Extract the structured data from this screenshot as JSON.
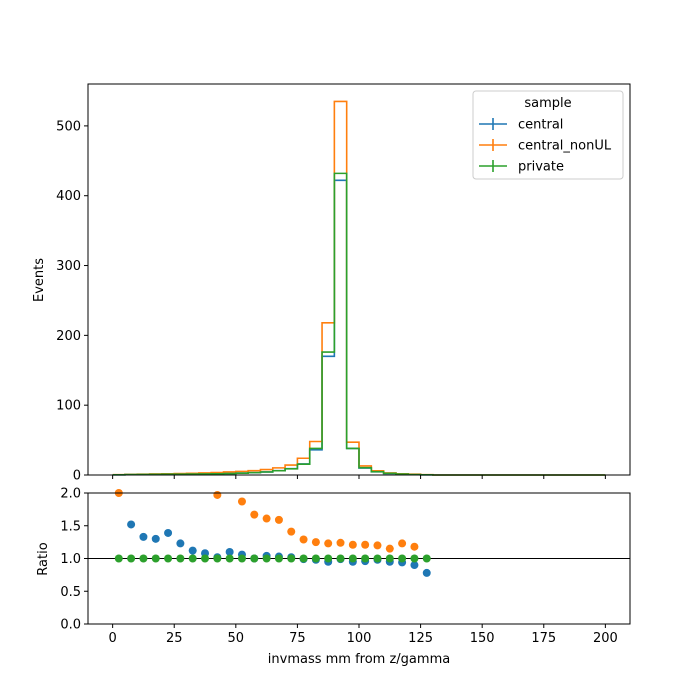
{
  "chart_data": [
    {
      "type": "line",
      "style": "step-histogram",
      "title": "",
      "xlabel": "",
      "ylabel": "Events",
      "xlim": [
        -10,
        210
      ],
      "ylim": [
        0,
        560
      ],
      "xticks": [
        0,
        25,
        50,
        75,
        100,
        125,
        150,
        175,
        200
      ],
      "xticks_labeled": false,
      "yticks": [
        0,
        100,
        200,
        300,
        400,
        500
      ],
      "bin_edges": [
        0,
        5,
        10,
        15,
        20,
        25,
        30,
        35,
        40,
        45,
        50,
        55,
        60,
        65,
        70,
        75,
        80,
        85,
        90,
        95,
        100,
        105,
        110,
        115,
        120,
        125,
        130,
        135,
        140,
        145,
        150,
        155,
        160,
        165,
        170,
        175,
        180,
        185,
        190,
        195,
        200
      ],
      "legend": {
        "title": "sample",
        "position": "top-right"
      },
      "series": [
        {
          "name": "central",
          "color": "#1f77b4",
          "values": [
            0.3,
            0.6,
            0.8,
            1.0,
            1.1,
            1.2,
            1.4,
            1.6,
            1.9,
            2.2,
            2.7,
            3.4,
            4.4,
            6.2,
            9.0,
            15.8,
            36,
            170,
            422,
            38,
            10,
            4.5,
            2.3,
            1.3,
            0.6,
            0.3,
            0,
            0,
            0,
            0,
            0,
            0,
            0,
            0,
            0,
            0,
            0,
            0,
            0,
            0
          ]
        },
        {
          "name": "central_nonUL",
          "color": "#ff7f0e",
          "values": [
            0.5,
            0.9,
            1.2,
            1.5,
            1.8,
            2.0,
            2.5,
            3.0,
            3.6,
            4.4,
            5.2,
            6.2,
            7.8,
            10.2,
            14.2,
            24,
            48,
            218,
            535,
            47,
            13,
            6,
            3,
            1.8,
            1.1,
            0.5,
            0,
            0,
            0,
            0,
            0,
            0,
            0,
            0,
            0,
            0,
            0,
            0,
            0,
            0
          ]
        },
        {
          "name": "private",
          "color": "#2ca02c",
          "values": [
            0.3,
            0.6,
            0.8,
            1.0,
            1.1,
            1.2,
            1.4,
            1.6,
            1.8,
            2.1,
            2.6,
            3.4,
            4.3,
            6.1,
            8.8,
            15.5,
            38,
            176,
            432,
            38,
            10.5,
            4.7,
            2.4,
            1.4,
            0.7,
            0.3,
            0,
            0,
            0,
            0,
            0,
            0,
            0,
            0,
            0,
            0,
            0,
            0,
            0,
            0
          ]
        }
      ]
    },
    {
      "type": "scatter",
      "title": "",
      "xlabel": "invmass mm from z/gamma",
      "ylabel": "Ratio",
      "xlim": [
        -10,
        210
      ],
      "ylim": [
        0,
        2
      ],
      "xticks": [
        0,
        25,
        50,
        75,
        100,
        125,
        150,
        175,
        200
      ],
      "yticks": [
        "0.0",
        "0.5",
        "1.0",
        "1.5",
        "2.0"
      ],
      "reference_line": 1.0,
      "series": [
        {
          "name": "central",
          "color": "#1f77b4",
          "x": [
            7.5,
            12.5,
            17.5,
            22.5,
            27.5,
            32.5,
            37.5,
            42.5,
            47.5,
            52.5,
            57.5,
            62.5,
            67.5,
            72.5,
            77.5,
            82.5,
            87.5,
            92.5,
            97.5,
            102.5,
            107.5,
            112.5,
            117.5,
            122.5,
            127.5
          ],
          "y": [
            1.52,
            1.33,
            1.3,
            1.39,
            1.23,
            1.12,
            1.08,
            1.02,
            1.1,
            1.06,
            1.0,
            1.04,
            1.03,
            1.02,
            0.99,
            0.98,
            0.95,
            0.99,
            0.95,
            0.96,
            0.98,
            0.95,
            0.94,
            0.9,
            0.78
          ]
        },
        {
          "name": "central_nonUL",
          "color": "#ff7f0e",
          "x": [
            2.5,
            42.5,
            52.5,
            57.5,
            62.5,
            67.5,
            72.5,
            77.5,
            82.5,
            87.5,
            92.5,
            97.5,
            102.5,
            107.5,
            112.5,
            117.5,
            122.5
          ],
          "y": [
            2.0,
            1.97,
            1.87,
            1.67,
            1.61,
            1.59,
            1.41,
            1.29,
            1.25,
            1.23,
            1.24,
            1.21,
            1.21,
            1.2,
            1.15,
            1.23,
            1.18
          ]
        },
        {
          "name": "private",
          "color": "#2ca02c",
          "x": [
            2.5,
            7.5,
            12.5,
            17.5,
            22.5,
            27.5,
            32.5,
            37.5,
            42.5,
            47.5,
            52.5,
            57.5,
            62.5,
            67.5,
            72.5,
            77.5,
            82.5,
            87.5,
            92.5,
            97.5,
            102.5,
            107.5,
            112.5,
            117.5,
            122.5,
            127.5
          ],
          "y": [
            1.0,
            1.0,
            1.0,
            1.0,
            1.0,
            1.0,
            1.0,
            1.0,
            1.0,
            1.0,
            1.0,
            1.0,
            1.0,
            1.0,
            1.0,
            1.0,
            1.0,
            1.0,
            1.0,
            1.0,
            1.0,
            1.0,
            1.0,
            1.0,
            1.0,
            1.0
          ]
        }
      ]
    }
  ]
}
